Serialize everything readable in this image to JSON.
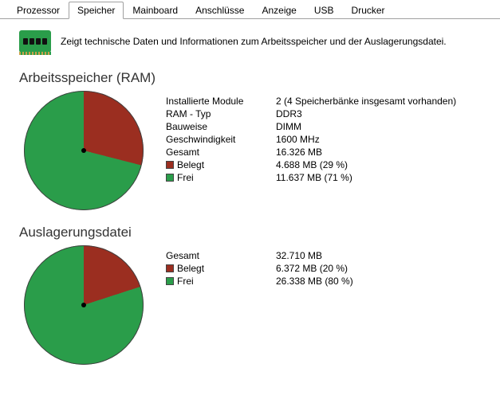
{
  "tabs": {
    "items": [
      "Prozessor",
      "Speicher",
      "Mainboard",
      "Anschlüsse",
      "Anzeige",
      "USB",
      "Drucker"
    ],
    "active_index": 1
  },
  "header": {
    "text": "Zeigt technische Daten und Informationen zum Arbeitsspeicher und der Auslagerungsdatei."
  },
  "colors": {
    "used": "#9b2e20",
    "free": "#2a9d4a",
    "pie_border": "#404040"
  },
  "ram_section": {
    "title": "Arbeitsspeicher (RAM)",
    "chart": {
      "type": "pie",
      "start_angle_deg": 270,
      "slices": [
        {
          "name": "used",
          "percent": 29,
          "color": "#9b2e20"
        },
        {
          "name": "free",
          "percent": 71,
          "color": "#2a9d4a"
        }
      ]
    },
    "rows": [
      {
        "label": "Installierte Module",
        "value": "2 (4 Speicherbänke insgesamt vorhanden)"
      },
      {
        "label": "RAM - Typ",
        "value": "DDR3"
      },
      {
        "label": "Bauweise",
        "value": "DIMM"
      },
      {
        "label": "Geschwindigkeit",
        "value": "1600 MHz"
      },
      {
        "label": "Gesamt",
        "value": "16.326 MB"
      },
      {
        "label": "Belegt",
        "value": "4.688 MB (29 %)",
        "swatch": "used"
      },
      {
        "label": "Frei",
        "value": "11.637 MB (71 %)",
        "swatch": "free"
      }
    ]
  },
  "swap_section": {
    "title": "Auslagerungsdatei",
    "chart": {
      "type": "pie",
      "start_angle_deg": 270,
      "slices": [
        {
          "name": "used",
          "percent": 20,
          "color": "#9b2e20"
        },
        {
          "name": "free",
          "percent": 80,
          "color": "#2a9d4a"
        }
      ]
    },
    "rows": [
      {
        "label": "Gesamt",
        "value": "32.710 MB"
      },
      {
        "label": "Belegt",
        "value": "6.372 MB (20 %)",
        "swatch": "used"
      },
      {
        "label": "Frei",
        "value": "26.338 MB (80 %)",
        "swatch": "free"
      }
    ]
  }
}
